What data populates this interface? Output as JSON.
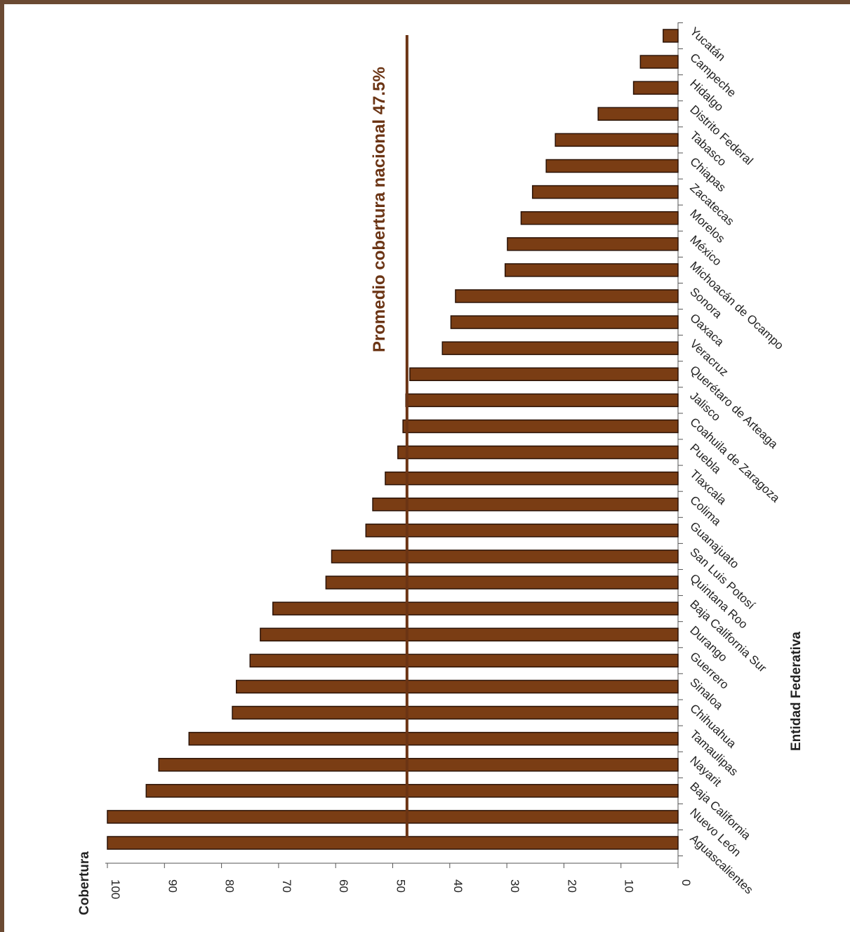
{
  "colors": {
    "bar_fill": "#7a3d14",
    "bar_stroke": "#2a1206",
    "average_line": "#6b3414",
    "frame": "#6b4a33",
    "axis": "#555555"
  },
  "chart_data": {
    "type": "bar",
    "orientation": "rotated-90",
    "xlabel": "Entidad Federativa",
    "ylabel": "Cobertura",
    "ylim": [
      0,
      100
    ],
    "ticks": [
      0,
      10,
      20,
      30,
      40,
      50,
      60,
      70,
      80,
      90,
      100
    ],
    "grid": false,
    "categories": [
      "Aguascalientes",
      "Nuevo León",
      "Baja California",
      "Nayarit",
      "Tamaulipas",
      "Chihuahua",
      "Sinaloa",
      "Guerrero",
      "Durango",
      "Baja California Sur",
      "Quintana Roo",
      "San Luis Potosí",
      "Guanajuato",
      "Colima",
      "Tlaxcala",
      "Puebla",
      "Coahuila de Zaragoza",
      "Jalisco",
      "Querétaro de Arteaga",
      "Veracruz",
      "Oaxaca",
      "Sonora",
      "Michoacán de Ocampo",
      "México",
      "Morelos",
      "Zacatecas",
      "Chiapas",
      "Tabasco",
      "Distrito Federal",
      "Hidalgo",
      "Campeche",
      "Yucatán"
    ],
    "values": [
      100,
      100,
      93.2,
      91.0,
      85.7,
      78.1,
      77.4,
      75.0,
      73.2,
      71.0,
      61.7,
      60.7,
      54.7,
      53.5,
      51.3,
      49.1,
      48.2,
      47.7,
      47.0,
      41.3,
      39.8,
      39.0,
      30.3,
      29.9,
      27.5,
      25.5,
      23.1,
      21.5,
      14.0,
      7.8,
      6.6,
      2.6
    ],
    "average": {
      "value": 47.5,
      "label": "Promedio cobertura nacional 47.5%"
    }
  }
}
